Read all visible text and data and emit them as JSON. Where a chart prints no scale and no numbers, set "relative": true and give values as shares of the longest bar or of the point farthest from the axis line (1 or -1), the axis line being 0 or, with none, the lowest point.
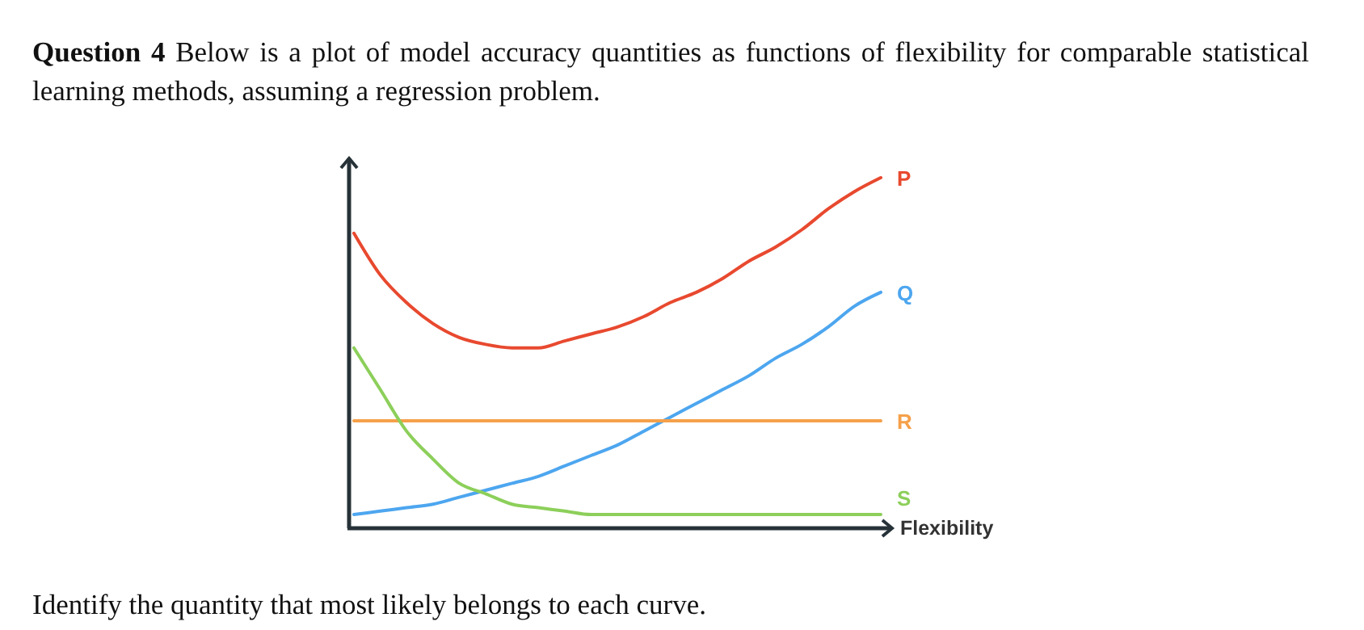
{
  "chart_data": {
    "type": "line",
    "relative": true,
    "title": "Question 4 Below is a plot of model accuracy quantities as functions of flexibility for comparable statistical learning methods, assuming a regression problem.",
    "xlabel": "Flexibility",
    "annotations": [
      "Identify the quantity that most likely belongs to each curve."
    ],
    "categories": [
      null,
      null,
      null,
      null,
      null,
      null,
      null,
      null,
      null,
      null,
      null,
      null,
      null,
      null,
      null,
      null,
      null,
      null,
      null,
      null,
      null
    ],
    "series": [
      {
        "name": "P",
        "color": "#e8492f",
        "values": [
          0.84,
          0.72,
          0.64,
          0.58,
          0.54,
          0.52,
          0.51,
          0.51,
          0.53,
          0.55,
          0.57,
          0.6,
          0.64,
          0.67,
          0.71,
          0.76,
          0.8,
          0.85,
          0.91,
          0.96,
          1
        ]
      },
      {
        "name": "Q",
        "color": "#4da6ef",
        "values": [
          0.03,
          0.04,
          0.05,
          0.06,
          0.08,
          0.1,
          0.12,
          0.14,
          0.17,
          0.2,
          0.23,
          0.27,
          0.31,
          0.35,
          0.39,
          0.43,
          0.48,
          0.52,
          0.57,
          0.63,
          0.67
        ]
      },
      {
        "name": "R",
        "color": "#f5a04a",
        "values": [
          0.3,
          0.3,
          0.3,
          0.3,
          0.3,
          0.3,
          0.3,
          0.3,
          0.3,
          0.3,
          0.3,
          0.3,
          0.3,
          0.3,
          0.3,
          0.3,
          0.3,
          0.3,
          0.3,
          0.3,
          0.3
        ]
      },
      {
        "name": "S",
        "color": "#8ccf5a",
        "values": [
          0.51,
          0.39,
          0.27,
          0.19,
          0.12,
          0.09,
          0.06,
          0.05,
          0.04,
          0.03,
          0.03,
          0.03,
          0.03,
          0.03,
          0.03,
          0.03,
          0.03,
          0.03,
          0.03,
          0.03,
          0.03
        ]
      }
    ],
    "marker": "none"
  }
}
